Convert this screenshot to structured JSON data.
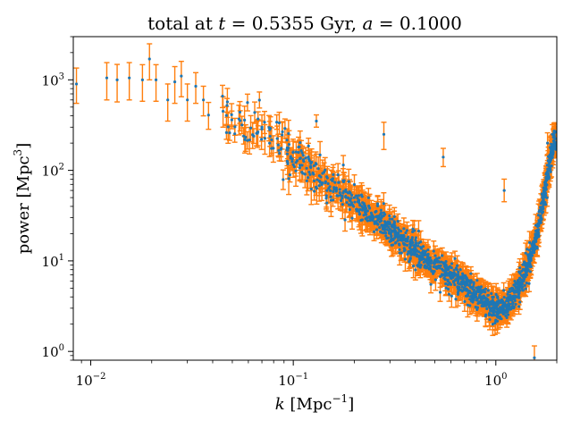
{
  "chart_data": {
    "type": "scatter",
    "title_parts": {
      "prefix": "total at ",
      "t_var": "t",
      "t_eq": " = 0.5355 Gyr, ",
      "a_var": "a",
      "a_eq": " = 0.1000"
    },
    "xlabel_parts": {
      "var": "k",
      "unit_open": " [Mpc",
      "exp": "−1",
      "unit_close": "]"
    },
    "ylabel_parts": {
      "text": "power [Mpc",
      "exp": "3",
      "unit_close": "]"
    },
    "x_scale": "log",
    "y_scale": "log",
    "xlim": [
      0.0082,
      2.0
    ],
    "ylim": [
      0.8,
      3000
    ],
    "grid": false,
    "legend": "none",
    "x_major_ticks": [
      {
        "value": 0.01,
        "base": "10",
        "exp": "−2"
      },
      {
        "value": 0.1,
        "base": "10",
        "exp": "−1"
      },
      {
        "value": 1,
        "base": "10",
        "exp": "0"
      }
    ],
    "y_major_ticks": [
      {
        "value": 1,
        "base": "10",
        "exp": "0"
      },
      {
        "value": 10,
        "base": "10",
        "exp": "1"
      },
      {
        "value": 100,
        "base": "10",
        "exp": "2"
      },
      {
        "value": 1000,
        "base": "10",
        "exp": "3"
      }
    ],
    "colors": {
      "points": "#1f77b4",
      "errorbars": "#ff7f0e"
    },
    "anchor_points": [
      {
        "x": 0.0085,
        "y": 900,
        "yerr_low": 350,
        "yerr_high": 450
      },
      {
        "x": 0.012,
        "y": 1050,
        "yerr_low": 450,
        "yerr_high": 500
      },
      {
        "x": 0.0135,
        "y": 1000,
        "yerr_low": 430,
        "yerr_high": 480
      },
      {
        "x": 0.0155,
        "y": 1050,
        "yerr_low": 450,
        "yerr_high": 500
      },
      {
        "x": 0.018,
        "y": 1000,
        "yerr_low": 420,
        "yerr_high": 470
      },
      {
        "x": 0.0195,
        "y": 1700,
        "yerr_low": 700,
        "yerr_high": 800
      },
      {
        "x": 0.021,
        "y": 1000,
        "yerr_low": 420,
        "yerr_high": 470
      },
      {
        "x": 0.024,
        "y": 600,
        "yerr_low": 250,
        "yerr_high": 300
      },
      {
        "x": 0.026,
        "y": 950,
        "yerr_low": 400,
        "yerr_high": 450
      },
      {
        "x": 0.028,
        "y": 1100,
        "yerr_low": 450,
        "yerr_high": 500
      },
      {
        "x": 0.03,
        "y": 600,
        "yerr_low": 250,
        "yerr_high": 300
      },
      {
        "x": 0.033,
        "y": 850,
        "yerr_low": 300,
        "yerr_high": 350
      },
      {
        "x": 0.036,
        "y": 600,
        "yerr_low": 200,
        "yerr_high": 250
      },
      {
        "x": 0.045,
        "y": 450,
        "yerr_low": 150,
        "yerr_high": 200
      },
      {
        "x": 0.07,
        "y": 300,
        "yerr_low": 90,
        "yerr_high": 110
      },
      {
        "x": 0.1,
        "y": 160,
        "yerr_low": 40,
        "yerr_high": 50
      },
      {
        "x": 0.13,
        "y": 350,
        "yerr_low": 50,
        "yerr_high": 60
      },
      {
        "x": 0.2,
        "y": 50,
        "yerr_low": 10,
        "yerr_high": 12
      },
      {
        "x": 0.28,
        "y": 250,
        "yerr_low": 80,
        "yerr_high": 90
      },
      {
        "x": 0.4,
        "y": 15,
        "yerr_low": 3,
        "yerr_high": 4
      },
      {
        "x": 0.55,
        "y": 140,
        "yerr_low": 30,
        "yerr_high": 35
      },
      {
        "x": 0.6,
        "y": 7,
        "yerr_low": 2,
        "yerr_high": 2.5
      },
      {
        "x": 0.8,
        "y": 4,
        "yerr_low": 1,
        "yerr_high": 1.2
      },
      {
        "x": 1.0,
        "y": 3,
        "yerr_low": 0.8,
        "yerr_high": 1
      },
      {
        "x": 1.1,
        "y": 60,
        "yerr_low": 15,
        "yerr_high": 20
      },
      {
        "x": 1.2,
        "y": 5,
        "yerr_low": 1.5,
        "yerr_high": 2
      },
      {
        "x": 1.55,
        "y": 0.85,
        "yerr_low": 0.2,
        "yerr_high": 0.3
      },
      {
        "x": 1.8,
        "y": 200,
        "yerr_low": 50,
        "yerr_high": 60
      },
      {
        "x": 1.9,
        "y": 250,
        "yerr_low": 60,
        "yerr_high": 70
      }
    ],
    "trend_curve": [
      {
        "x": 0.035,
        "y": 600
      },
      {
        "x": 0.05,
        "y": 400
      },
      {
        "x": 0.07,
        "y": 260
      },
      {
        "x": 0.1,
        "y": 140
      },
      {
        "x": 0.15,
        "y": 70
      },
      {
        "x": 0.2,
        "y": 45
      },
      {
        "x": 0.3,
        "y": 22
      },
      {
        "x": 0.4,
        "y": 13
      },
      {
        "x": 0.5,
        "y": 9
      },
      {
        "x": 0.7,
        "y": 5.5
      },
      {
        "x": 0.9,
        "y": 3.4
      },
      {
        "x": 1.0,
        "y": 2.9
      },
      {
        "x": 1.15,
        "y": 3.2
      },
      {
        "x": 1.3,
        "y": 5
      },
      {
        "x": 1.45,
        "y": 9
      },
      {
        "x": 1.6,
        "y": 20
      },
      {
        "x": 1.75,
        "y": 60
      },
      {
        "x": 1.85,
        "y": 130
      },
      {
        "x": 1.95,
        "y": 230
      }
    ]
  }
}
